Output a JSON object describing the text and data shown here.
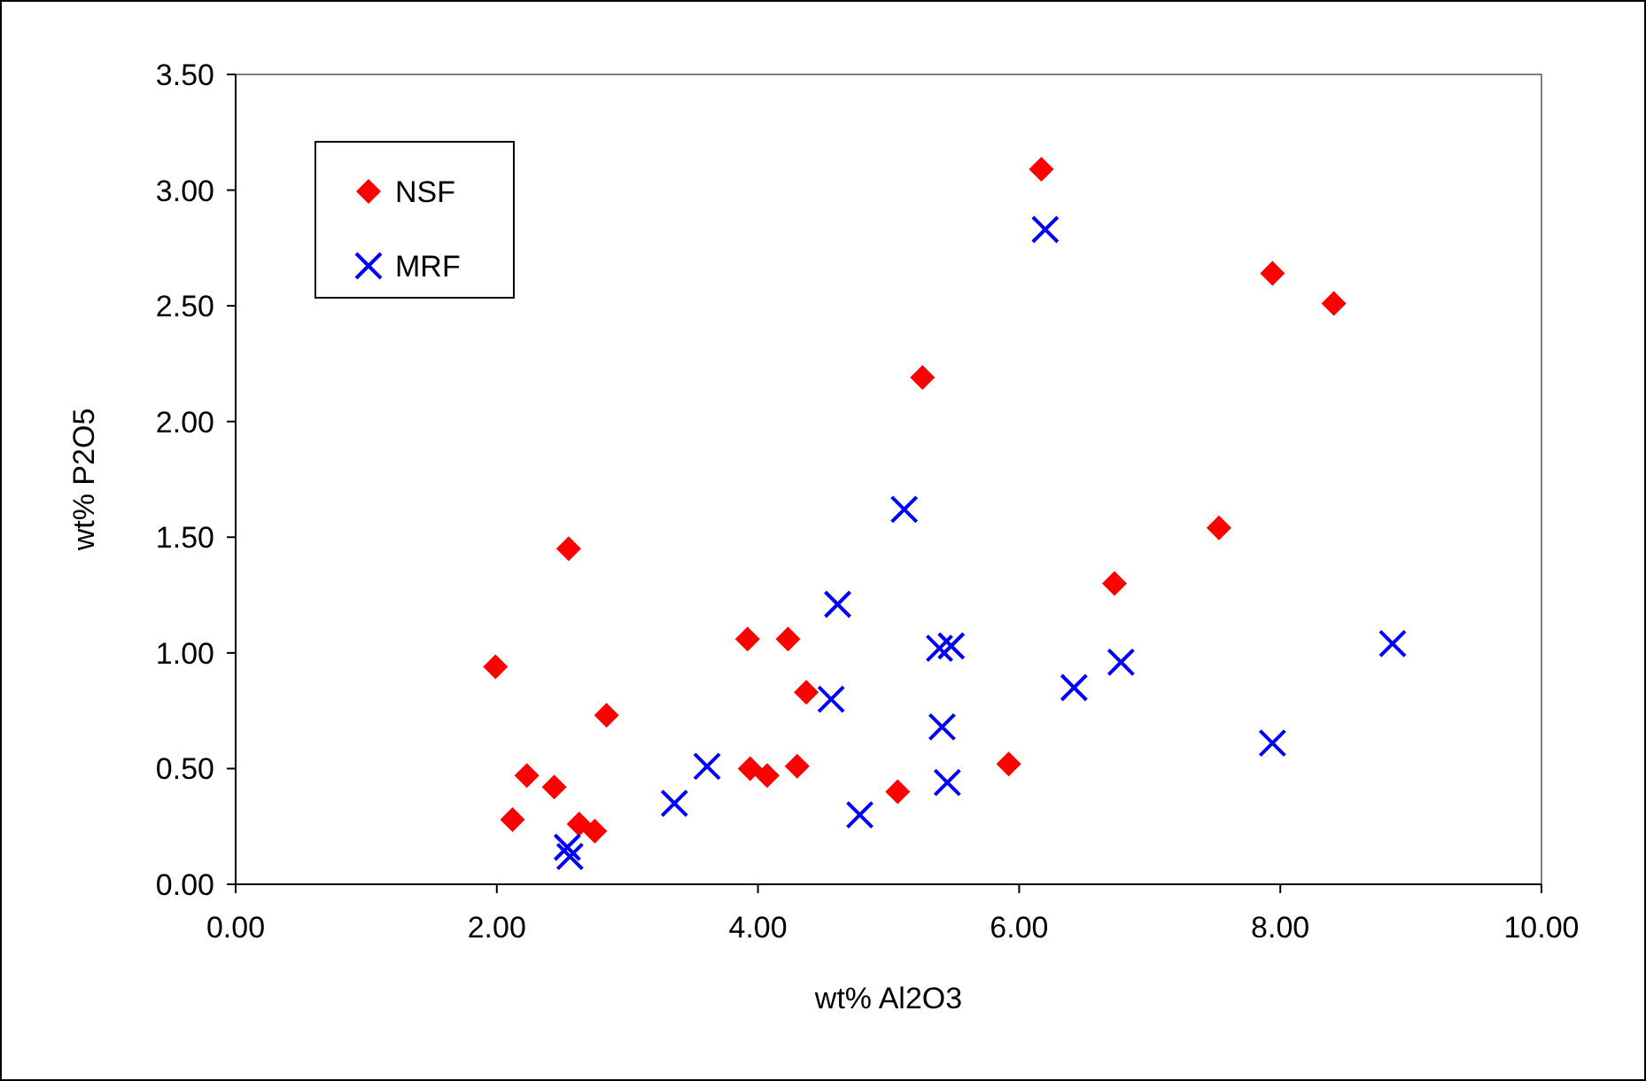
{
  "chart_data": {
    "type": "scatter",
    "xlabel": "wt% Al2O3",
    "ylabel": "wt% P2O5",
    "xlim": [
      0,
      10
    ],
    "ylim": [
      0,
      3.5
    ],
    "xticks": [
      {
        "value": 0,
        "label": "0.00"
      },
      {
        "value": 2,
        "label": "2.00"
      },
      {
        "value": 4,
        "label": "4.00"
      },
      {
        "value": 6,
        "label": "6.00"
      },
      {
        "value": 8,
        "label": "8.00"
      },
      {
        "value": 10,
        "label": "10.00"
      }
    ],
    "yticks": [
      {
        "value": 0,
        "label": "0.00"
      },
      {
        "value": 0.5,
        "label": "0.50"
      },
      {
        "value": 1,
        "label": "1.00"
      },
      {
        "value": 1.5,
        "label": "1.50"
      },
      {
        "value": 2,
        "label": "2.00"
      },
      {
        "value": 2.5,
        "label": "2.50"
      },
      {
        "value": 3,
        "label": "3.00"
      },
      {
        "value": 3.5,
        "label": "3.50"
      }
    ],
    "grid": false,
    "legend": "top left",
    "series": [
      {
        "name": "NSF",
        "color": "#ff0000",
        "marker": "diamond",
        "x": [
          1.99,
          2.12,
          2.23,
          2.44,
          2.55,
          2.63,
          2.75,
          2.84,
          3.92,
          3.94,
          4.07,
          4.23,
          4.3,
          4.37,
          5.07,
          5.26,
          5.92,
          6.17,
          6.73,
          7.53,
          7.94,
          8.41
        ],
        "values": [
          0.94,
          0.28,
          0.47,
          0.42,
          1.45,
          0.26,
          0.23,
          0.73,
          1.06,
          0.5,
          0.47,
          1.06,
          0.51,
          0.83,
          0.4,
          2.19,
          0.52,
          3.09,
          1.3,
          1.54,
          2.64,
          2.51
        ]
      },
      {
        "name": "MRF",
        "color": "#0000ff",
        "marker": "cross",
        "x": [
          2.54,
          2.56,
          3.36,
          3.61,
          4.56,
          4.61,
          4.78,
          5.12,
          5.39,
          5.41,
          5.48,
          5.45,
          6.2,
          6.42,
          6.78,
          7.94,
          8.86
        ],
        "values": [
          0.16,
          0.12,
          0.35,
          0.51,
          0.8,
          1.21,
          0.3,
          1.62,
          1.02,
          0.68,
          1.03,
          0.44,
          2.83,
          0.85,
          0.96,
          0.61,
          1.04
        ]
      }
    ]
  }
}
